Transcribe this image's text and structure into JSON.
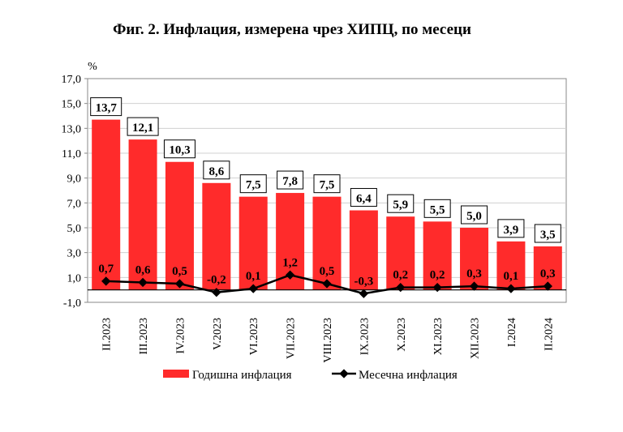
{
  "chart_data": {
    "type": "bar",
    "title": "Фиг. 2. Инфлация, измерена чрез ХИПЦ, по месеци",
    "ylabel": "%",
    "xlabel": "",
    "ylim": [
      -1,
      17
    ],
    "yticks": [
      "-1,0",
      "1,0",
      "3,0",
      "5,0",
      "7,0",
      "9,0",
      "11,0",
      "13,0",
      "15,0",
      "17,0"
    ],
    "ytick_values": [
      -1,
      1,
      3,
      5,
      7,
      9,
      11,
      13,
      15,
      17
    ],
    "grid": true,
    "legend_position": "bottom",
    "categories": [
      "II.2023",
      "III.2023",
      "IV.2023",
      "V.2023",
      "VI.2023",
      "VII.2023",
      "VIII.2023",
      "IX.2023",
      "X.2023",
      "XI.2023",
      "XII.2023",
      "I.2024",
      "II.2024"
    ],
    "series": [
      {
        "name": "Годишна инфлация",
        "type": "bar",
        "color": "#ff2b2b",
        "values": [
          13.7,
          12.1,
          10.3,
          8.6,
          7.5,
          7.8,
          7.5,
          6.4,
          5.9,
          5.5,
          5.0,
          3.9,
          3.5
        ],
        "labels": [
          "13,7",
          "12,1",
          "10,3",
          "8,6",
          "7,5",
          "7,8",
          "7,5",
          "6,4",
          "5,9",
          "5,5",
          "5,0",
          "3,9",
          "3,5"
        ]
      },
      {
        "name": "Месечна инфлация",
        "type": "line",
        "color": "#000000",
        "values": [
          0.7,
          0.6,
          0.5,
          -0.2,
          0.1,
          1.2,
          0.5,
          -0.3,
          0.2,
          0.2,
          0.3,
          0.1,
          0.3
        ],
        "labels": [
          "0,7",
          "0,6",
          "0,5",
          "-0,2",
          "0,1",
          "1,2",
          "0,5",
          "-0,3",
          "0,2",
          "0,2",
          "0,3",
          "0,1",
          "0,3"
        ]
      }
    ]
  }
}
